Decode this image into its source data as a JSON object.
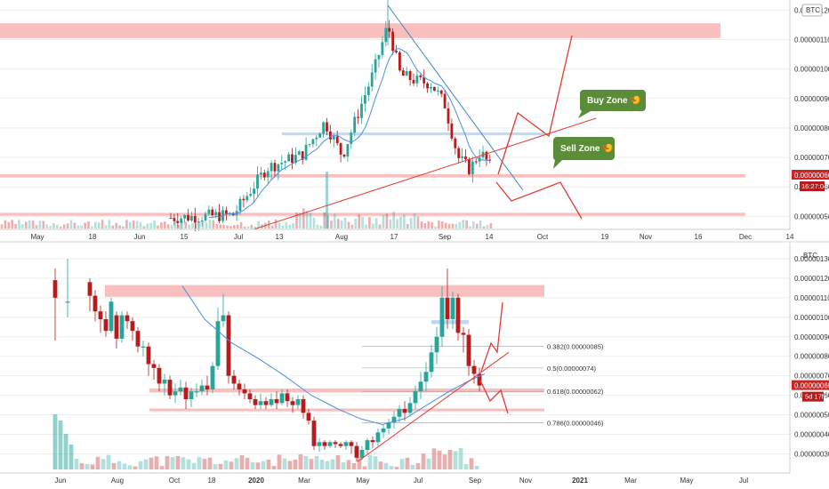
{
  "colors": {
    "up": "#26a69a",
    "down": "#b71c1c",
    "zone": "#f7a8a8",
    "blue_zone": "#b9d3f2",
    "trend_red": "#e53935",
    "trend_blue": "#3d85c6",
    "ma": "#4a90e2",
    "callout": "#5b8c3a",
    "price_tag": "#c62828",
    "grid": "#eeeeee",
    "axis_text": "#333333"
  },
  "chart_data": [
    {
      "type": "candlestick",
      "panel": "top",
      "symbol_label": "BTC",
      "xaxis": {
        "labels": [
          "May",
          "18",
          "Jun",
          "15",
          "Jul",
          "13",
          "Aug",
          "17",
          "Sep",
          "14",
          "Oct",
          "19",
          "Nov",
          "16",
          "Dec",
          "14"
        ]
      },
      "yaxis": {
        "labels": [
          "0.00000120",
          "0.00000110",
          "0.00000100",
          "0.00000090",
          "0.00000080",
          "0.00000070",
          "0.00000060",
          "0.00000050"
        ],
        "range": [
          4.8e-07,
          1.21e-06
        ]
      },
      "price_tag": {
        "value": "0.00000066",
        "countdown": "16:27:04"
      },
      "callouts": [
        {
          "text": "Buy Zone 🍤",
          "id": "buy"
        },
        {
          "text": "Sell Zone 🍤",
          "id": "sell"
        }
      ]
    },
    {
      "type": "candlestick",
      "panel": "bottom",
      "symbol_label": "BTC",
      "xaxis": {
        "labels": [
          "Jun",
          "Aug",
          "Oct",
          "18",
          "2020",
          "Mar",
          "May",
          "Jul",
          "Sep",
          "Nov",
          "2021",
          "Mar",
          "May",
          "Jul"
        ]
      },
      "yaxis": {
        "labels": [
          "0.00000130",
          "0.00000120",
          "0.00000110",
          "0.00000100",
          "0.00000090",
          "0.00000080",
          "0.00000070",
          "0.00000060",
          "0.00000050",
          "0.00000040",
          "0.00000030"
        ],
        "range": [
          2.2e-07,
          1.35e-06
        ]
      },
      "price_tag": {
        "value": "0.00000065",
        "countdown": "5d 17h"
      },
      "fibonacci": [
        {
          "label": "0.382(0.00000085)",
          "value": 8.5e-07
        },
        {
          "label": "0.5(0.00000074)",
          "value": 7.4e-07
        },
        {
          "label": "0.618(0.00000062)",
          "value": 6.2e-07
        },
        {
          "label": "0.786(0.00000046)",
          "value": 4.6e-07
        }
      ]
    }
  ]
}
